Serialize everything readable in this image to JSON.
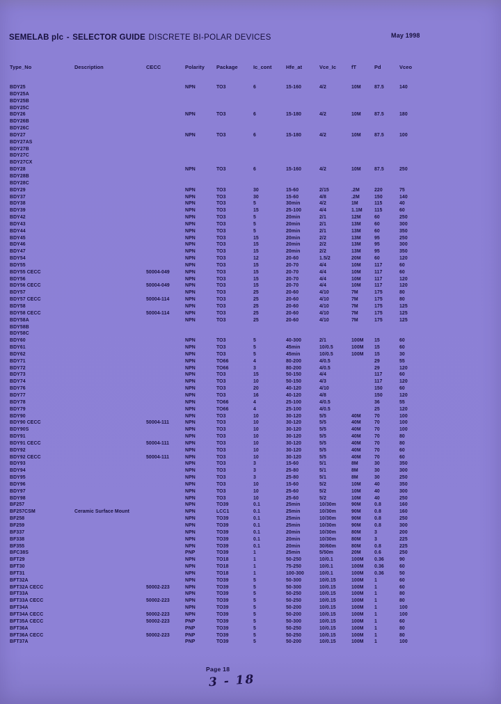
{
  "page": {
    "bg_color": "#8c80d5",
    "text_color": "#17103d"
  },
  "header": {
    "brand": "SEMELAB plc",
    "separator": "-",
    "guide": "SELECTOR GUIDE",
    "product": "DISCRETE BI-POLAR DEVICES",
    "date": "May 1998"
  },
  "table": {
    "columns": [
      "Type_No",
      "Description",
      "CECC",
      "Polarity",
      "Package",
      "Ic_cont",
      "Hfe_at",
      "Vce_Ic",
      "fT",
      "Pd",
      "Vceo"
    ],
    "rows": [
      [
        "BDY25",
        "",
        "",
        "NPN",
        "TO3",
        "6",
        "15-160",
        "4/2",
        "10M",
        "87.5",
        "140"
      ],
      [
        "BDY25A",
        "",
        "",
        "",
        "",
        "",
        "",
        "",
        "",
        "",
        ""
      ],
      [
        "BDY25B",
        "",
        "",
        "",
        "",
        "",
        "",
        "",
        "",
        "",
        ""
      ],
      [
        "BDY25C",
        "",
        "",
        "",
        "",
        "",
        "",
        "",
        "",
        "",
        ""
      ],
      [
        "BDY26",
        "",
        "",
        "NPN",
        "TO3",
        "6",
        "15-180",
        "4/2",
        "10M",
        "87.5",
        "180"
      ],
      [
        "BDY26B",
        "",
        "",
        "",
        "",
        "",
        "",
        "",
        "",
        "",
        ""
      ],
      [
        "BDY26C",
        "",
        "",
        "",
        "",
        "",
        "",
        "",
        "",
        "",
        ""
      ],
      [
        "BDY27",
        "",
        "",
        "NPN",
        "TO3",
        "6",
        "15-180",
        "4/2",
        "10M",
        "87.5",
        "100"
      ],
      [
        "BDY27AS",
        "",
        "",
        "",
        "",
        "",
        "",
        "",
        "",
        "",
        ""
      ],
      [
        "BDY27B",
        "",
        "",
        "",
        "",
        "",
        "",
        "",
        "",
        "",
        ""
      ],
      [
        "BDY27C",
        "",
        "",
        "",
        "",
        "",
        "",
        "",
        "",
        "",
        ""
      ],
      [
        "BDY27CX",
        "",
        "",
        "",
        "",
        "",
        "",
        "",
        "",
        "",
        ""
      ],
      [
        "BDY28",
        "",
        "",
        "NPN",
        "TO3",
        "6",
        "15-160",
        "4/2",
        "10M",
        "87.5",
        "250"
      ],
      [
        "BDY28B",
        "",
        "",
        "",
        "",
        "",
        "",
        "",
        "",
        "",
        ""
      ],
      [
        "BDY28C",
        "",
        "",
        "",
        "",
        "",
        "",
        "",
        "",
        "",
        ""
      ],
      [
        "BDY29",
        "",
        "",
        "NPN",
        "TO3",
        "30",
        "15-60",
        "2/15",
        ".2M",
        "220",
        "75"
      ],
      [
        "BDY37",
        "",
        "",
        "NPN",
        "TO3",
        "30",
        "15-60",
        "4/8",
        ".2M",
        "150",
        "140"
      ],
      [
        "BDY38",
        "",
        "",
        "NPN",
        "TO3",
        "5",
        "30min",
        "4/2",
        "1M",
        "115",
        "40"
      ],
      [
        "BDY39",
        "",
        "",
        "NPN",
        "TO3",
        "15",
        "25-100",
        "4/4",
        "1.1M",
        "115",
        "60"
      ],
      [
        "BDY42",
        "",
        "",
        "NPN",
        "TO3",
        "5",
        "20min",
        "2/1",
        "12M",
        "60",
        "250"
      ],
      [
        "BDY43",
        "",
        "",
        "NPN",
        "TO3",
        "5",
        "20min",
        "2/1",
        "13M",
        "60",
        "300"
      ],
      [
        "BDY44",
        "",
        "",
        "NPN",
        "TO3",
        "5",
        "20min",
        "2/1",
        "13M",
        "60",
        "350"
      ],
      [
        "BDY45",
        "",
        "",
        "NPN",
        "TO3",
        "15",
        "20min",
        "2/2",
        "13M",
        "95",
        "250"
      ],
      [
        "BDY46",
        "",
        "",
        "NPN",
        "TO3",
        "15",
        "20min",
        "2/2",
        "13M",
        "95",
        "300"
      ],
      [
        "BDY47",
        "",
        "",
        "NPN",
        "TO3",
        "15",
        "20min",
        "2/2",
        "13M",
        "95",
        "350"
      ],
      [
        "BDY54",
        "",
        "",
        "NPN",
        "TO3",
        "12",
        "20-60",
        "1.5/2",
        "20M",
        "60",
        "120"
      ],
      [
        "BDY55",
        "",
        "",
        "NPN",
        "TO3",
        "15",
        "20-70",
        "4/4",
        "10M",
        "117",
        "60"
      ],
      [
        "BDY55 CECC",
        "",
        "50004-049",
        "NPN",
        "TO3",
        "15",
        "20-70",
        "4/4",
        "10M",
        "117",
        "60"
      ],
      [
        "BDY56",
        "",
        "",
        "NPN",
        "TO3",
        "15",
        "20-70",
        "4/4",
        "10M",
        "117",
        "120"
      ],
      [
        "BDY56 CECC",
        "",
        "50004-049",
        "NPN",
        "TO3",
        "15",
        "20-70",
        "4/4",
        "10M",
        "117",
        "120"
      ],
      [
        "BDY57",
        "",
        "",
        "NPN",
        "TO3",
        "25",
        "20-60",
        "4/10",
        "7M",
        "175",
        "80"
      ],
      [
        "BDY57 CECC",
        "",
        "50004-114",
        "NPN",
        "TO3",
        "25",
        "20-60",
        "4/10",
        "7M",
        "175",
        "80"
      ],
      [
        "BDY58",
        "",
        "",
        "NPN",
        "TO3",
        "25",
        "20-60",
        "4/10",
        "7M",
        "175",
        "125"
      ],
      [
        "BDY58 CECC",
        "",
        "50004-114",
        "NPN",
        "TO3",
        "25",
        "20-60",
        "4/10",
        "7M",
        "175",
        "125"
      ],
      [
        "BDY58A",
        "",
        "",
        "NPN",
        "TO3",
        "25",
        "20-60",
        "4/10",
        "7M",
        "175",
        "125"
      ],
      [
        "BDY58B",
        "",
        "",
        "",
        "",
        "",
        "",
        "",
        "",
        "",
        ""
      ],
      [
        "BDY58C",
        "",
        "",
        "",
        "",
        "",
        "",
        "",
        "",
        "",
        ""
      ],
      [
        "BDY60",
        "",
        "",
        "NPN",
        "TO3",
        "5",
        "40-300",
        "2/1",
        "100M",
        "15",
        "60"
      ],
      [
        "BDY61",
        "",
        "",
        "NPN",
        "TO3",
        "5",
        "45min",
        "10/0.5",
        "100M",
        "15",
        "60"
      ],
      [
        "BDY62",
        "",
        "",
        "NPN",
        "TO3",
        "5",
        "45min",
        "10/0.5",
        "100M",
        "15",
        "30"
      ],
      [
        "BDY71",
        "",
        "",
        "NPN",
        "TO66",
        "4",
        "80-200",
        "4/0.5",
        "",
        "29",
        "55"
      ],
      [
        "BDY72",
        "",
        "",
        "NPN",
        "TO66",
        "3",
        "80-200",
        "4/0.5",
        "",
        "29",
        "120"
      ],
      [
        "BDY73",
        "",
        "",
        "NPN",
        "TO3",
        "15",
        "50-150",
        "4/4",
        "",
        "117",
        "60"
      ],
      [
        "BDY74",
        "",
        "",
        "NPN",
        "TO3",
        "10",
        "50-150",
        "4/3",
        "",
        "117",
        "120"
      ],
      [
        "BDY76",
        "",
        "",
        "NPN",
        "TO3",
        "20",
        "40-120",
        "4/10",
        "",
        "150",
        "60"
      ],
      [
        "BDY77",
        "",
        "",
        "NPN",
        "TO3",
        "16",
        "40-120",
        "4/8",
        "",
        "150",
        "120"
      ],
      [
        "BDY78",
        "",
        "",
        "NPN",
        "TO66",
        "4",
        "25-100",
        "4/0.5",
        "",
        "36",
        "55"
      ],
      [
        "BDY79",
        "",
        "",
        "NPN",
        "TO66",
        "4",
        "25-100",
        "4/0.5",
        "",
        "25",
        "120"
      ],
      [
        "BDY90",
        "",
        "",
        "NPN",
        "TO3",
        "10",
        "30-120",
        "5/5",
        "40M",
        "70",
        "100"
      ],
      [
        "BDY90 CECC",
        "",
        "50004-111",
        "NPN",
        "TO3",
        "10",
        "30-120",
        "5/5",
        "40M",
        "70",
        "100"
      ],
      [
        "BDY90S",
        "",
        "",
        "NPN",
        "TO3",
        "10",
        "30-120",
        "5/5",
        "40M",
        "70",
        "100"
      ],
      [
        "BDY91",
        "",
        "",
        "NPN",
        "TO3",
        "10",
        "30-120",
        "5/5",
        "40M",
        "70",
        "80"
      ],
      [
        "BDY91 CECC",
        "",
        "50004-111",
        "NPN",
        "TO3",
        "10",
        "30-120",
        "5/5",
        "40M",
        "70",
        "80"
      ],
      [
        "BDY92",
        "",
        "",
        "NPN",
        "TO3",
        "10",
        "30-120",
        "5/5",
        "40M",
        "70",
        "60"
      ],
      [
        "BDY92 CECC",
        "",
        "50004-111",
        "NPN",
        "TO3",
        "10",
        "30-120",
        "5/5",
        "40M",
        "70",
        "60"
      ],
      [
        "BDY93",
        "",
        "",
        "NPN",
        "TO3",
        "3",
        "15-60",
        "5/1",
        "8M",
        "30",
        "350"
      ],
      [
        "BDY94",
        "",
        "",
        "NPN",
        "TO3",
        "3",
        "25-80",
        "5/1",
        "8M",
        "30",
        "300"
      ],
      [
        "BDY95",
        "",
        "",
        "NPN",
        "TO3",
        "3",
        "25-80",
        "5/1",
        "8M",
        "30",
        "250"
      ],
      [
        "BDY96",
        "",
        "",
        "NPN",
        "TO3",
        "10",
        "15-60",
        "5/2",
        "10M",
        "40",
        "350"
      ],
      [
        "BDY97",
        "",
        "",
        "NPN",
        "TO3",
        "10",
        "25-60",
        "5/2",
        "10M",
        "40",
        "300"
      ],
      [
        "BDY98",
        "",
        "",
        "NPN",
        "TO3",
        "10",
        "25-60",
        "5/2",
        "10M",
        "40",
        "250"
      ],
      [
        "BF257",
        "",
        "",
        "NPN",
        "TO39",
        "0.1",
        "25min",
        "10/30m",
        "90M",
        "0.8",
        "160"
      ],
      [
        "BF257CSM",
        "Ceramic Surface Mount",
        "",
        "NPN",
        "LCC1",
        "0.1",
        "25min",
        "10/30m",
        "90M",
        "0.8",
        "160"
      ],
      [
        "BF258",
        "",
        "",
        "NPN",
        "TO39",
        "0.1",
        "25min",
        "10/30m",
        "90M",
        "0.8",
        "250"
      ],
      [
        "BF259",
        "",
        "",
        "NPN",
        "TO39",
        "0.1",
        "25min",
        "10/30m",
        "90M",
        "0.8",
        "300"
      ],
      [
        "BF337",
        "",
        "",
        "NPN",
        "TO39",
        "0.1",
        "20min",
        "10/30m",
        "80M",
        "3",
        "200"
      ],
      [
        "BF338",
        "",
        "",
        "NPN",
        "TO39",
        "0.1",
        "20min",
        "10/30m",
        "80M",
        "3",
        "225"
      ],
      [
        "BF355",
        "",
        "",
        "NPN",
        "TO39",
        "0.1",
        "20min",
        "30/60m",
        "80M",
        "0.8",
        "225"
      ],
      [
        "BFC38S",
        "",
        "",
        "PNP",
        "TO39",
        "1",
        "25min",
        "5/50m",
        "20M",
        "0.6",
        "250"
      ],
      [
        "BFT29",
        "",
        "",
        "NPN",
        "TO18",
        "1",
        "50-250",
        "10/0.1",
        "100M",
        "0.36",
        "90"
      ],
      [
        "BFT30",
        "",
        "",
        "NPN",
        "TO18",
        "1",
        "75-250",
        "10/0.1",
        "100M",
        "0.36",
        "60"
      ],
      [
        "BFT31",
        "",
        "",
        "NPN",
        "TO18",
        "1",
        "100-300",
        "10/0.1",
        "100M",
        "0.36",
        "50"
      ],
      [
        "BFT32A",
        "",
        "",
        "NPN",
        "TO39",
        "5",
        "50-300",
        "10/0.15",
        "100M",
        "1",
        "60"
      ],
      [
        "BFT32A CECC",
        "",
        "50002-223",
        "NPN",
        "TO39",
        "5",
        "50-300",
        "10/0.15",
        "100M",
        "1",
        "60"
      ],
      [
        "BFT33A",
        "",
        "",
        "NPN",
        "TO39",
        "5",
        "50-250",
        "10/0.15",
        "100M",
        "1",
        "80"
      ],
      [
        "BFT33A CECC",
        "",
        "50002-223",
        "NPN",
        "TO39",
        "5",
        "50-250",
        "10/0.15",
        "100M",
        "1",
        "80"
      ],
      [
        "BFT34A",
        "",
        "",
        "NPN",
        "TO39",
        "5",
        "50-200",
        "10/0.15",
        "100M",
        "1",
        "100"
      ],
      [
        "BFT34A CECC",
        "",
        "50002-223",
        "NPN",
        "TO39",
        "5",
        "50-200",
        "10/0.15",
        "100M",
        "1",
        "100"
      ],
      [
        "BFT35A CECC",
        "",
        "50002-223",
        "PNP",
        "TO39",
        "5",
        "50-300",
        "10/0.15",
        "100M",
        "1",
        "60"
      ],
      [
        "BFT36A",
        "",
        "",
        "PNP",
        "TO39",
        "5",
        "50-250",
        "10/0.15",
        "100M",
        "1",
        "80"
      ],
      [
        "BFT36A CECC",
        "",
        "50002-223",
        "PNP",
        "TO39",
        "5",
        "50-250",
        "10/0.15",
        "100M",
        "1",
        "80"
      ],
      [
        "BFT37A",
        "",
        "",
        "PNP",
        "TO39",
        "5",
        "50-200",
        "10/0.15",
        "100M",
        "1",
        "100"
      ]
    ]
  },
  "footer": {
    "page_label": "Page 18",
    "handwritten_note": "3 - 18"
  }
}
